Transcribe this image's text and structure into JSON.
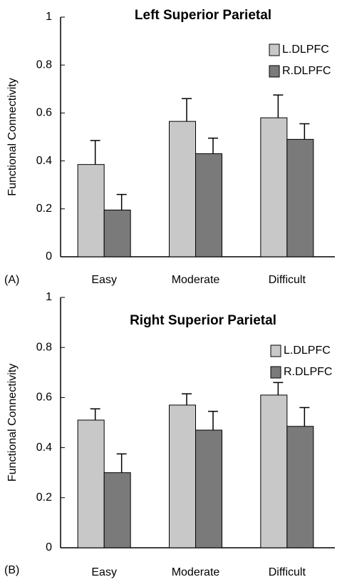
{
  "chart_data": [
    {
      "type": "bar",
      "title": "Left  Superior Parietal",
      "panel_label": "(A)",
      "y_label": "Functional Connectivity",
      "categories": [
        "Easy",
        "Moderate",
        "Difficult"
      ],
      "series": [
        {
          "name": "L.DLPFC",
          "color": "#c8c8c8",
          "values": [
            0.385,
            0.565,
            0.58
          ],
          "errors": [
            0.1,
            0.095,
            0.095
          ]
        },
        {
          "name": "R.DLPFC",
          "color": "#7a7a7a",
          "values": [
            0.195,
            0.43,
            0.49
          ],
          "errors": [
            0.065,
            0.065,
            0.065
          ]
        }
      ],
      "ylim": [
        0,
        1
      ],
      "yticks": [
        0,
        0.2,
        0.4,
        0.6,
        0.8,
        1
      ],
      "legend": "upper right"
    },
    {
      "type": "bar",
      "title": "Right  Superior Parietal",
      "panel_label": "(B)",
      "y_label": "Functional Connectivity",
      "categories": [
        "Easy",
        "Moderate",
        "Difficult"
      ],
      "series": [
        {
          "name": "L.DLPFC",
          "color": "#c8c8c8",
          "values": [
            0.51,
            0.57,
            0.61
          ],
          "errors": [
            0.045,
            0.045,
            0.05
          ]
        },
        {
          "name": "R.DLPFC",
          "color": "#7a7a7a",
          "values": [
            0.3,
            0.47,
            0.485
          ],
          "errors": [
            0.075,
            0.075,
            0.075
          ]
        }
      ],
      "ylim": [
        0,
        1
      ],
      "yticks": [
        0,
        0.2,
        0.4,
        0.6,
        0.8,
        1
      ],
      "legend": "upper right"
    }
  ]
}
